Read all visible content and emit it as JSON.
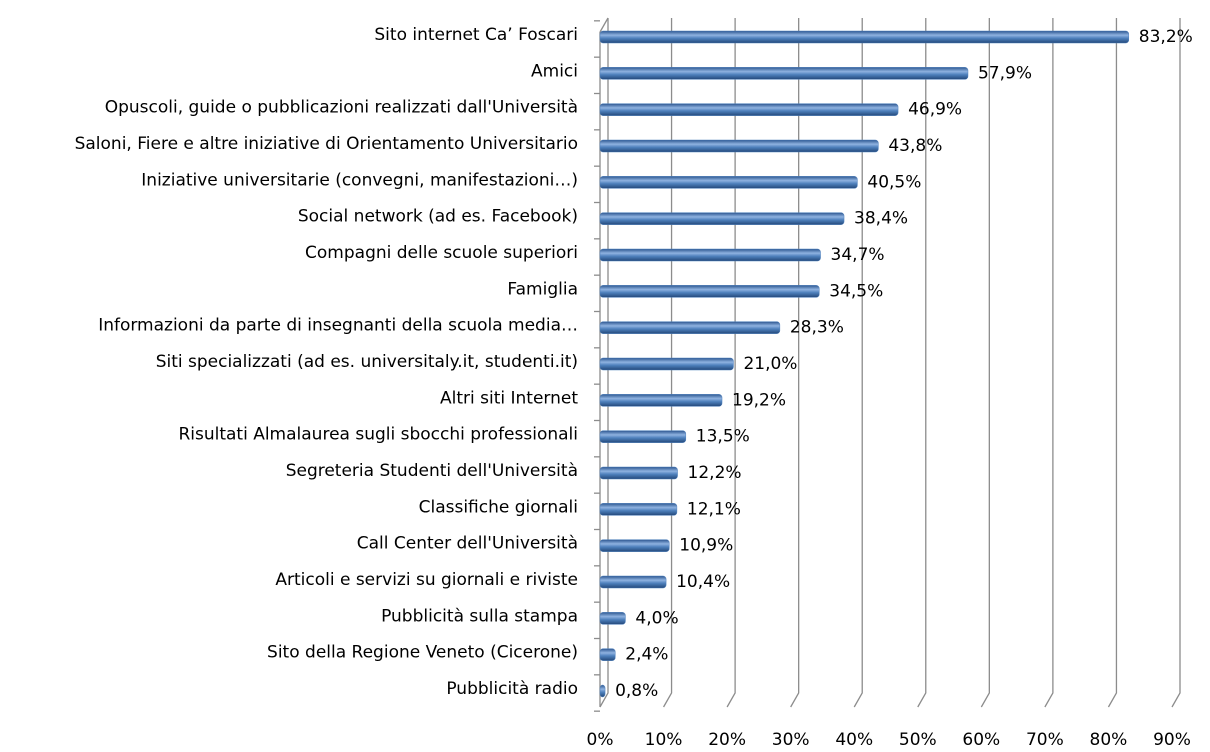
{
  "chart_data": {
    "type": "bar",
    "orientation": "horizontal",
    "categories": [
      "Sito internet Ca’ Foscari",
      "Amici",
      "Opuscoli, guide o pubblicazioni realizzati dall'Università",
      "Saloni, Fiere e altre iniziative di Orientamento Universitario",
      "Iniziative universitarie (convegni, manifestazioni…)",
      "Social network (ad es. Facebook)",
      "Compagni delle scuole superiori",
      "Famiglia",
      "Informazioni da parte di insegnanti della scuola media…",
      "Siti specializzati (ad es. universitaly.it, studenti.it)",
      "Altri siti Internet",
      "Risultati Almalaurea sugli sbocchi professionali",
      "Segreteria Studenti dell'Università",
      "Classifiche giornali",
      "Call Center dell'Università",
      "Articoli e servizi su giornali e riviste",
      "Pubblicità sulla stampa",
      "Sito della Regione Veneto (Cicerone)",
      "Pubblicità radio"
    ],
    "values": [
      83.2,
      57.9,
      46.9,
      43.8,
      40.5,
      38.4,
      34.7,
      34.5,
      28.3,
      21.0,
      19.2,
      13.5,
      12.2,
      12.1,
      10.9,
      10.4,
      4.0,
      2.4,
      0.8
    ],
    "value_labels": [
      "83,2%",
      "57,9%",
      "46,9%",
      "43,8%",
      "40,5%",
      "38,4%",
      "34,7%",
      "34,5%",
      "28,3%",
      "21,0%",
      "19,2%",
      "13,5%",
      "12,2%",
      "12,1%",
      "10,9%",
      "10,4%",
      "4,0%",
      "2,4%",
      "0,8%"
    ],
    "color": "#4f81bd",
    "xlim": [
      0,
      90
    ],
    "xticks": [
      {
        "value": 0,
        "label": "0%"
      },
      {
        "value": 10,
        "label": "10%"
      },
      {
        "value": 20,
        "label": "20%"
      },
      {
        "value": 30,
        "label": "30%"
      },
      {
        "value": 40,
        "label": "40%"
      },
      {
        "value": 50,
        "label": "50%"
      },
      {
        "value": 60,
        "label": "60%"
      },
      {
        "value": 70,
        "label": "70%"
      },
      {
        "value": 80,
        "label": "80%"
      },
      {
        "value": 90,
        "label": "90%"
      }
    ],
    "grid": true
  }
}
